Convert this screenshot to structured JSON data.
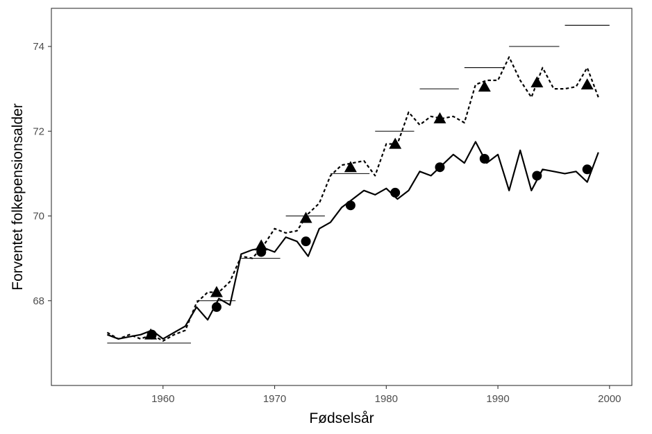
{
  "chart_data": {
    "type": "line",
    "title": "",
    "xlabel": "Fødselsår",
    "ylabel": "Forventet folkepensionsalder",
    "xlim": [
      1950,
      2002
    ],
    "ylim": [
      66.0,
      74.9
    ],
    "x_ticks": [
      1960,
      1970,
      1980,
      1990,
      2000
    ],
    "x_tick_labels": [
      "1960",
      "1970",
      "1980",
      "1990",
      "2000"
    ],
    "y_ticks": [
      68,
      70,
      72,
      74
    ],
    "y_tick_labels": [
      "68",
      "70",
      "72",
      "74"
    ],
    "grid": false,
    "legend": "none",
    "series": [
      {
        "style": "solid-line",
        "x": [
          1955,
          1956,
          1957,
          1958,
          1959,
          1960,
          1961,
          1962,
          1963,
          1964,
          1965,
          1966,
          1967,
          1968,
          1969,
          1970,
          1971,
          1972,
          1973,
          1974,
          1975,
          1976,
          1977,
          1978,
          1979,
          1980,
          1981,
          1982,
          1983,
          1984,
          1985,
          1986,
          1987,
          1988,
          1989,
          1990,
          1991,
          1992,
          1993,
          1994,
          1995,
          1996,
          1997,
          1998,
          1999
        ],
        "y": [
          67.2,
          67.1,
          67.15,
          67.2,
          67.3,
          67.1,
          67.25,
          67.4,
          67.85,
          67.55,
          68.05,
          67.9,
          69.1,
          69.2,
          69.25,
          69.15,
          69.5,
          69.4,
          69.05,
          69.7,
          69.85,
          70.2,
          70.4,
          70.6,
          70.5,
          70.65,
          70.4,
          70.6,
          71.05,
          70.95,
          71.2,
          71.45,
          71.25,
          71.75,
          71.25,
          71.45,
          70.6,
          71.55,
          70.6,
          71.1,
          71.05,
          71.0,
          71.05,
          70.8,
          71.5
        ]
      },
      {
        "style": "dotted-line",
        "x": [
          1955,
          1956,
          1957,
          1958,
          1959,
          1960,
          1961,
          1962,
          1963,
          1964,
          1965,
          1966,
          1967,
          1968,
          1969,
          1970,
          1971,
          1972,
          1973,
          1974,
          1975,
          1976,
          1977,
          1978,
          1979,
          1980,
          1981,
          1982,
          1983,
          1984,
          1985,
          1986,
          1987,
          1988,
          1989,
          1990,
          1991,
          1992,
          1993,
          1994,
          1995,
          1996,
          1997,
          1998,
          1999
        ],
        "y": [
          67.25,
          67.1,
          67.2,
          67.1,
          67.2,
          67.05,
          67.2,
          67.3,
          67.95,
          68.2,
          68.2,
          68.45,
          69.05,
          69.0,
          69.3,
          69.7,
          69.6,
          69.65,
          70.05,
          70.3,
          70.95,
          71.2,
          71.25,
          71.3,
          70.95,
          71.7,
          71.7,
          72.45,
          72.15,
          72.35,
          72.3,
          72.35,
          72.2,
          73.1,
          73.2,
          73.2,
          73.75,
          73.2,
          72.8,
          73.5,
          73.0,
          73.0,
          73.05,
          73.5,
          72.8
        ]
      },
      {
        "style": "circle-points",
        "x": [
          1959,
          1964.8,
          1968.8,
          1972.8,
          1976.8,
          1980.8,
          1984.8,
          1988.8,
          1993.5,
          1998
        ],
        "y": [
          67.2,
          67.85,
          69.15,
          69.4,
          70.25,
          70.55,
          71.15,
          71.35,
          70.95,
          71.1
        ]
      },
      {
        "style": "triangle-points",
        "x": [
          1958.9,
          1964.8,
          1968.8,
          1972.8,
          1976.8,
          1980.8,
          1984.8,
          1988.8,
          1993.5,
          1998
        ],
        "y": [
          67.2,
          68.2,
          69.3,
          69.95,
          71.15,
          71.7,
          72.3,
          73.05,
          73.15,
          73.1
        ]
      },
      {
        "style": "reference-segments",
        "segments": [
          {
            "x": [
              1955,
              1962.5
            ],
            "y": 67.0
          },
          {
            "x": [
              1963,
              1966.5
            ],
            "y": 68.0
          },
          {
            "x": [
              1967,
              1970.5
            ],
            "y": 69.0
          },
          {
            "x": [
              1971,
              1974.5
            ],
            "y": 70.0
          },
          {
            "x": [
              1975,
              1978.5
            ],
            "y": 71.0
          },
          {
            "x": [
              1979,
              1982.5
            ],
            "y": 72.0
          },
          {
            "x": [
              1983,
              1986.5
            ],
            "y": 73.0
          },
          {
            "x": [
              1987,
              1990.5
            ],
            "y": 73.5
          },
          {
            "x": [
              1991,
              1995.5
            ],
            "y": 74.0
          },
          {
            "x": [
              1996,
              2000
            ],
            "y": 74.5
          }
        ]
      }
    ]
  }
}
